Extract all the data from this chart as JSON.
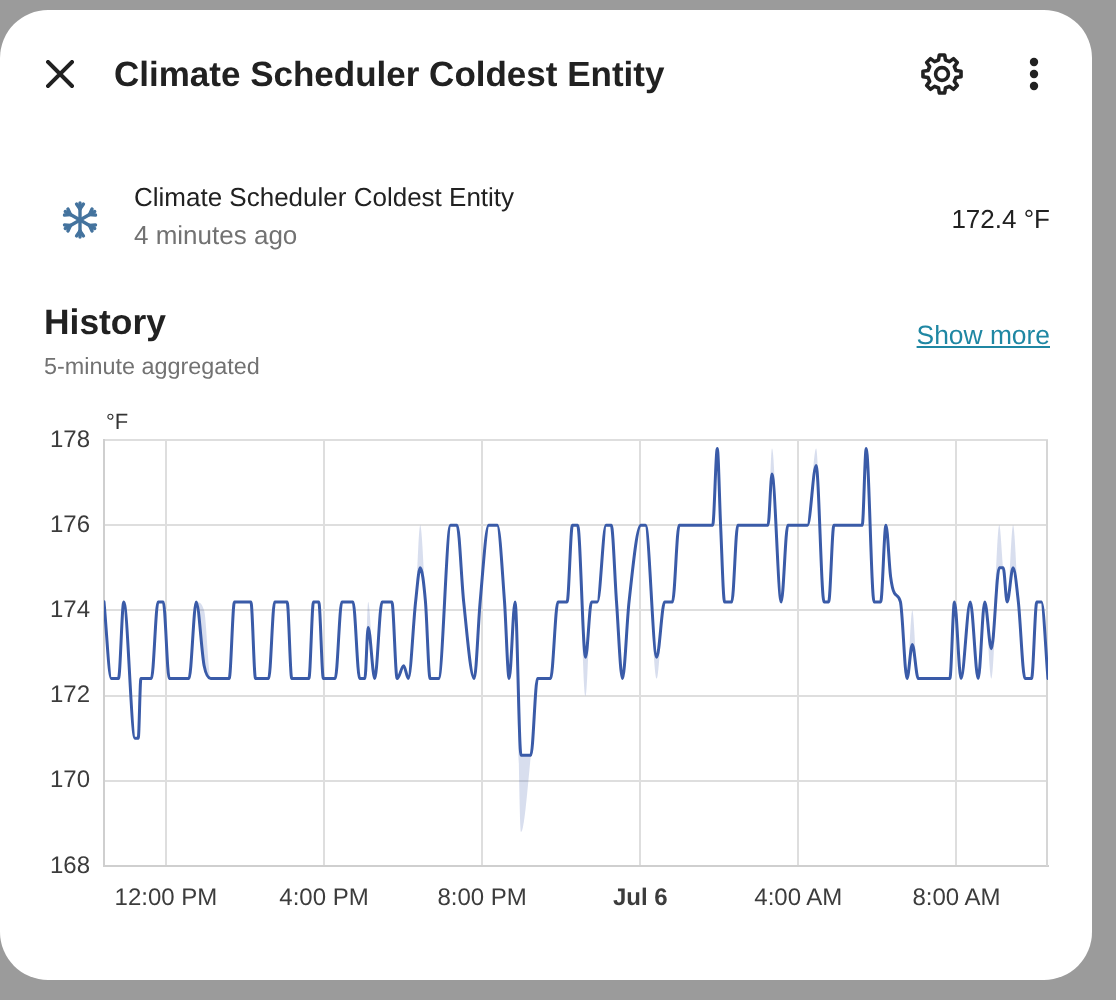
{
  "chart_data": {
    "type": "line",
    "title": "History",
    "subtitle": "5-minute aggregated",
    "ylabel": "°F",
    "annotations": [
      "Climate Scheduler Coldest Entity",
      "Climate Scheduler Coldest Entity",
      "4 minutes ago",
      "172.4 °F",
      "Show more"
    ],
    "x": [
      "--07-05T10:26",
      "--07-05T10:37",
      "--07-05T10:48",
      "--07-05T10:56",
      "--07-05T11:13",
      "--07-05T11:18",
      "--07-05T11:22",
      "--07-05T11:38",
      "--07-05T11:48",
      "--07-05T11:56",
      "--07-05T12:05",
      "--07-05T12:35",
      "--07-05T12:46",
      "--07-05T12:58",
      "--07-05T13:08",
      "--07-05T13:36",
      "--07-05T13:44",
      "--07-05T14:09",
      "--07-05T14:16",
      "--07-05T14:36",
      "--07-05T14:45",
      "--07-05T15:04",
      "--07-05T15:11",
      "--07-05T15:37",
      "--07-05T15:44",
      "--07-05T15:52",
      "--07-05T15:59",
      "--07-05T16:17",
      "--07-05T16:27",
      "--07-05T16:44",
      "--07-05T16:54",
      "--07-05T17:02",
      "--07-05T17:07",
      "--07-05T17:17",
      "--07-05T17:28",
      "--07-05T17:43",
      "--07-05T17:51",
      "--07-05T18:01",
      "--07-05T18:08",
      "--07-05T18:19",
      "--07-05T18:26",
      "--07-05T18:34",
      "--07-05T18:41",
      "--07-05T18:54",
      "--07-05T19:12",
      "--07-05T19:22",
      "--07-05T19:32",
      "--07-05T19:48",
      "--07-05T19:57",
      "--07-05T20:10",
      "--07-05T20:23",
      "--07-05T20:34",
      "--07-05T20:41",
      "--07-05T20:50",
      "--07-05T20:59",
      "--07-05T21:14",
      "--07-05T21:24",
      "--07-05T21:44",
      "--07-05T21:55",
      "--07-05T22:09",
      "--07-05T22:17",
      "--07-05T22:25",
      "--07-05T22:37",
      "--07-05T22:46",
      "--07-05T22:55",
      "--07-05T23:08",
      "--07-05T23:16",
      "--07-05T23:24",
      "--07-05T23:33",
      "--07-05T23:43",
      "--07-06T00:01",
      "--07-06T00:08",
      "--07-06T00:25",
      "--07-06T00:37",
      "--07-06T00:49",
      "--07-06T00:59",
      "--07-06T01:50",
      "--07-06T01:57",
      "--07-06T02:02",
      "--07-06T02:08",
      "--07-06T02:19",
      "--07-06T02:28",
      "--07-06T03:14",
      "--07-06T03:20",
      "--07-06T03:34",
      "--07-06T03:44",
      "--07-06T04:14",
      "--07-06T04:27",
      "--07-06T04:39",
      "--07-06T04:46",
      "--07-06T04:54",
      "--07-06T05:37",
      "--07-06T05:43",
      "--07-06T05:55",
      "--07-06T06:05",
      "--07-06T06:13",
      "--07-06T06:20",
      "--07-06T06:26",
      "--07-06T06:35",
      "--07-06T06:45",
      "--07-06T06:53",
      "--07-06T07:02",
      "--07-06T07:50",
      "--07-06T07:57",
      "--07-06T08:07",
      "--07-06T08:21",
      "--07-06T08:33",
      "--07-06T08:43",
      "--07-06T08:53",
      "--07-06T09:05",
      "--07-06T09:11",
      "--07-06T09:17",
      "--07-06T09:26",
      "--07-06T09:34",
      "--07-06T09:44",
      "--07-06T09:54",
      "--07-06T10:02",
      "--07-06T10:09",
      "--07-06T10:19"
    ],
    "series": [
      {
        "color": "#3a5ba8",
        "values": [
          174.2,
          172.4,
          172.4,
          174.2,
          171.0,
          171.0,
          172.4,
          172.4,
          174.2,
          174.2,
          172.4,
          172.4,
          174.2,
          172.7,
          172.4,
          172.4,
          174.2,
          174.2,
          172.4,
          172.4,
          174.2,
          174.2,
          172.4,
          172.4,
          174.2,
          174.2,
          172.4,
          172.4,
          174.2,
          174.2,
          172.4,
          172.4,
          173.6,
          172.4,
          174.2,
          174.2,
          172.4,
          172.7,
          172.4,
          174.2,
          175.0,
          174.2,
          172.4,
          172.4,
          176.0,
          176.0,
          174.2,
          172.4,
          174.2,
          176.0,
          176.0,
          174.2,
          172.4,
          174.2,
          170.6,
          170.6,
          172.4,
          172.4,
          174.2,
          174.2,
          176.0,
          176.0,
          172.9,
          174.2,
          174.2,
          176.0,
          176.0,
          174.2,
          172.4,
          174.2,
          176.0,
          176.0,
          172.9,
          174.2,
          174.2,
          176.0,
          176.0,
          177.8,
          176.0,
          174.2,
          174.2,
          176.0,
          176.0,
          177.2,
          174.2,
          176.0,
          176.0,
          177.4,
          174.2,
          174.2,
          176.0,
          176.0,
          177.8,
          174.2,
          174.2,
          176.0,
          174.8,
          174.4,
          174.2,
          172.4,
          173.2,
          172.4,
          172.4,
          174.2,
          172.4,
          174.2,
          172.4,
          174.2,
          173.1,
          175.0,
          175.0,
          174.2,
          175.0,
          174.2,
          172.4,
          172.4,
          174.2,
          174.2,
          172.4
        ],
        "lower": [
          174.2,
          172.4,
          172.4,
          174.2,
          171.0,
          171.0,
          172.4,
          172.4,
          174.2,
          174.2,
          172.4,
          172.4,
          174.2,
          172.7,
          172.4,
          172.4,
          174.2,
          174.2,
          172.4,
          172.4,
          174.2,
          174.2,
          172.4,
          172.4,
          174.2,
          174.2,
          172.4,
          172.4,
          174.2,
          174.2,
          172.4,
          172.4,
          173.6,
          172.4,
          174.2,
          174.2,
          172.4,
          172.7,
          172.4,
          174.2,
          175.0,
          174.2,
          172.4,
          172.4,
          176.0,
          176.0,
          174.2,
          172.4,
          174.2,
          176.0,
          176.0,
          174.2,
          172.4,
          174.2,
          168.8,
          170.6,
          172.4,
          172.4,
          174.2,
          174.2,
          176.0,
          176.0,
          172.0,
          174.2,
          174.2,
          176.0,
          176.0,
          174.2,
          172.4,
          174.2,
          176.0,
          176.0,
          172.4,
          174.2,
          174.2,
          176.0,
          176.0,
          177.8,
          176.0,
          174.2,
          174.2,
          176.0,
          176.0,
          177.2,
          174.2,
          176.0,
          176.0,
          177.4,
          174.2,
          174.2,
          176.0,
          176.0,
          177.8,
          174.2,
          174.2,
          176.0,
          174.8,
          174.4,
          174.2,
          172.4,
          173.2,
          172.4,
          172.4,
          174.2,
          172.4,
          174.2,
          172.4,
          174.2,
          172.4,
          175.0,
          175.0,
          174.2,
          175.0,
          174.2,
          172.4,
          172.4,
          174.2,
          174.2,
          172.4
        ],
        "upper": [
          174.2,
          172.4,
          172.4,
          174.2,
          171.0,
          171.0,
          172.4,
          172.4,
          174.2,
          174.2,
          172.4,
          172.4,
          174.2,
          174.0,
          172.4,
          172.4,
          174.2,
          174.2,
          172.4,
          172.4,
          174.2,
          174.2,
          172.4,
          172.4,
          174.2,
          174.2,
          172.4,
          172.4,
          174.2,
          174.2,
          172.4,
          172.4,
          174.2,
          172.4,
          174.2,
          174.2,
          172.4,
          172.7,
          172.4,
          174.2,
          176.0,
          174.2,
          172.4,
          172.4,
          176.0,
          176.0,
          174.2,
          172.4,
          174.2,
          176.0,
          176.0,
          174.2,
          172.4,
          174.2,
          170.6,
          170.6,
          172.4,
          172.4,
          174.2,
          174.2,
          176.0,
          176.0,
          172.9,
          174.2,
          174.2,
          176.0,
          176.0,
          174.2,
          172.4,
          174.2,
          176.0,
          176.0,
          172.9,
          174.2,
          174.2,
          176.0,
          176.0,
          177.8,
          176.0,
          174.2,
          174.2,
          176.0,
          176.0,
          177.8,
          174.2,
          176.0,
          176.0,
          177.8,
          174.2,
          174.2,
          176.0,
          176.0,
          177.8,
          174.2,
          174.2,
          176.0,
          174.8,
          174.4,
          174.2,
          172.4,
          174.0,
          172.4,
          172.4,
          174.2,
          172.4,
          174.2,
          172.4,
          174.2,
          173.1,
          176.0,
          175.0,
          174.2,
          176.0,
          174.2,
          172.4,
          172.4,
          174.2,
          174.2,
          172.4
        ]
      }
    ],
    "xlim": [
      "--07-05T10:26",
      "--07-06T10:19"
    ],
    "xticks": [
      {
        "value": "--07-05T12:00",
        "label": "12:00 PM"
      },
      {
        "value": "--07-05T16:00",
        "label": "4:00 PM"
      },
      {
        "value": "--07-05T20:00",
        "label": "8:00 PM"
      },
      {
        "value": "--07-06",
        "label": "Jul 6"
      },
      {
        "value": "--07-06T04:00",
        "label": "4:00 AM"
      },
      {
        "value": "--07-06T08:00",
        "label": "8:00 AM"
      }
    ],
    "ylim": [
      168,
      178
    ],
    "yticks": [
      168,
      170,
      172,
      174,
      176,
      178
    ],
    "grid": true
  }
}
